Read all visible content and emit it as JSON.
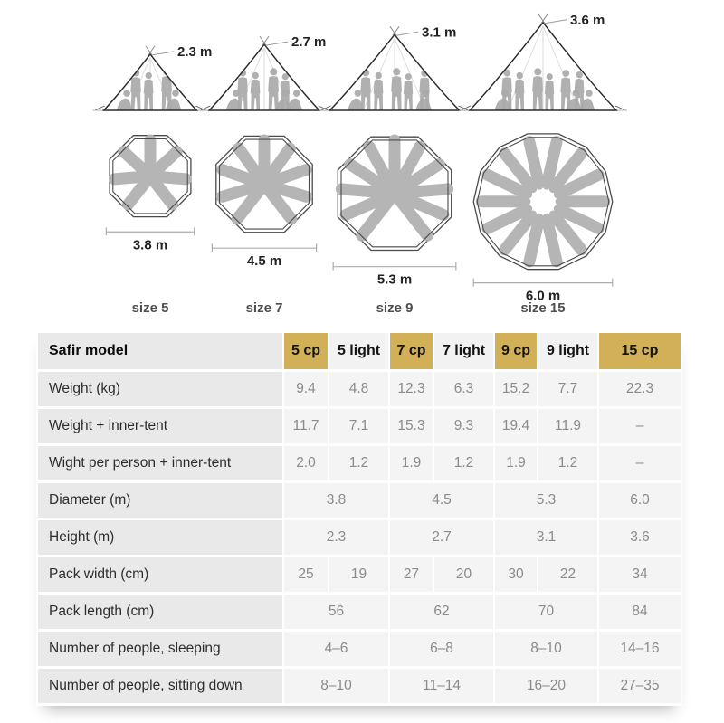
{
  "figures": [
    {
      "size_label": "size 5",
      "height_label": "2.3 m",
      "diameter_label": "3.8 m",
      "height_m": 2.3,
      "diameter_m": 3.8,
      "people_standing": 3,
      "people_sitting": 2,
      "plan_sides": 8,
      "plan_people": 7,
      "plan_full_circle": false
    },
    {
      "size_label": "size 7",
      "height_label": "2.7 m",
      "diameter_label": "4.5 m",
      "height_m": 2.7,
      "diameter_m": 4.5,
      "people_standing": 4,
      "people_sitting": 3,
      "plan_sides": 8,
      "plan_people": 9,
      "plan_full_circle": false
    },
    {
      "size_label": "size 9",
      "height_label": "3.1 m",
      "diameter_label": "5.3 m",
      "height_m": 3.1,
      "diameter_m": 5.3,
      "people_standing": 5,
      "people_sitting": 2,
      "plan_sides": 8,
      "plan_people": 11,
      "plan_full_circle": false
    },
    {
      "size_label": "size 15",
      "height_label": "3.6 m",
      "diameter_label": "6.0 m",
      "height_m": 3.6,
      "diameter_m": 6.0,
      "people_standing": 6,
      "people_sitting": 3,
      "plan_sides": 14,
      "plan_people": 14,
      "plan_full_circle": true
    }
  ],
  "table": {
    "header": {
      "label": "Safir model",
      "columns": [
        {
          "label": "5 cp",
          "highlight": true
        },
        {
          "label": "5 light",
          "highlight": false
        },
        {
          "label": "7 cp",
          "highlight": true
        },
        {
          "label": "7 light",
          "highlight": false
        },
        {
          "label": "9 cp",
          "highlight": true
        },
        {
          "label": "9 light",
          "highlight": false
        },
        {
          "label": "15 cp",
          "highlight": true
        }
      ]
    },
    "rows": [
      {
        "label": "Weight (kg)",
        "cells": [
          {
            "text": "9.4",
            "span": 1
          },
          {
            "text": "4.8",
            "span": 1
          },
          {
            "text": "12.3",
            "span": 1
          },
          {
            "text": "6.3",
            "span": 1
          },
          {
            "text": "15.2",
            "span": 1
          },
          {
            "text": "7.7",
            "span": 1
          },
          {
            "text": "22.3",
            "span": 1
          }
        ]
      },
      {
        "label": "Weight + inner-tent",
        "cells": [
          {
            "text": "11.7",
            "span": 1
          },
          {
            "text": "7.1",
            "span": 1
          },
          {
            "text": "15.3",
            "span": 1
          },
          {
            "text": "9.3",
            "span": 1
          },
          {
            "text": "19.4",
            "span": 1
          },
          {
            "text": "11.9",
            "span": 1
          },
          {
            "text": "–",
            "span": 1
          }
        ]
      },
      {
        "label": "Wight per person + inner-tent",
        "cells": [
          {
            "text": "2.0",
            "span": 1
          },
          {
            "text": "1.2",
            "span": 1
          },
          {
            "text": "1.9",
            "span": 1
          },
          {
            "text": "1.2",
            "span": 1
          },
          {
            "text": "1.9",
            "span": 1
          },
          {
            "text": "1.2",
            "span": 1
          },
          {
            "text": "–",
            "span": 1
          }
        ]
      },
      {
        "label": "Diameter (m)",
        "cells": [
          {
            "text": "3.8",
            "span": 2
          },
          {
            "text": "4.5",
            "span": 2
          },
          {
            "text": "5.3",
            "span": 2
          },
          {
            "text": "6.0",
            "span": 1
          }
        ]
      },
      {
        "label": "Height (m)",
        "cells": [
          {
            "text": "2.3",
            "span": 2
          },
          {
            "text": "2.7",
            "span": 2
          },
          {
            "text": "3.1",
            "span": 2
          },
          {
            "text": "3.6",
            "span": 1
          }
        ]
      },
      {
        "label": "Pack width (cm)",
        "cells": [
          {
            "text": "25",
            "span": 1
          },
          {
            "text": "19",
            "span": 1
          },
          {
            "text": "27",
            "span": 1
          },
          {
            "text": "20",
            "span": 1
          },
          {
            "text": "30",
            "span": 1
          },
          {
            "text": "22",
            "span": 1
          },
          {
            "text": "34",
            "span": 1
          }
        ]
      },
      {
        "label": "Pack length (cm)",
        "cells": [
          {
            "text": "56",
            "span": 2
          },
          {
            "text": "62",
            "span": 2
          },
          {
            "text": "70",
            "span": 2
          },
          {
            "text": "84",
            "span": 1
          }
        ]
      },
      {
        "label": "Number of people, sleeping",
        "cells": [
          {
            "text": "4–6",
            "span": 2
          },
          {
            "text": "6–8",
            "span": 2
          },
          {
            "text": "8–10",
            "span": 2
          },
          {
            "text": "14–16",
            "span": 1
          }
        ]
      },
      {
        "label": "Number of people, sitting down",
        "cells": [
          {
            "text": "8–10",
            "span": 2
          },
          {
            "text": "11–14",
            "span": 2
          },
          {
            "text": "16–20",
            "span": 2
          },
          {
            "text": "27–35",
            "span": 1
          }
        ]
      }
    ]
  },
  "colors": {
    "highlight_gold": "#d1b057",
    "row_label_bg": "#e9e9e9",
    "cell_bg": "#f4f4f4",
    "value_text": "#8b8b8b",
    "silhouette_gray": "#a9a9a9"
  }
}
